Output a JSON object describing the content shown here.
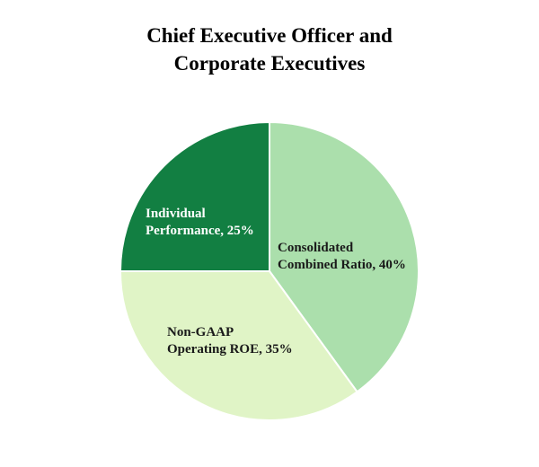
{
  "chart_data": {
    "type": "pie",
    "title_lines": [
      "Chief Executive Officer and",
      "Corporate Executives"
    ],
    "slices": [
      {
        "label_lines": [
          "Consolidated",
          "Combined Ratio, 40%"
        ],
        "value": 40,
        "color": "#abdfac",
        "text_color": "#1a1a1a"
      },
      {
        "label_lines": [
          "Non-GAAP",
          "Operating ROE, 35%"
        ],
        "value": 35,
        "color": "#e0f4c6",
        "text_color": "#1a1a1a"
      },
      {
        "label_lines": [
          "Individual",
          "Performance, 25%"
        ],
        "value": 25,
        "color": "#127f42",
        "text_color": "#ffffff"
      }
    ],
    "start_angle_deg": 0,
    "direction": "clockwise",
    "legend": "none"
  }
}
